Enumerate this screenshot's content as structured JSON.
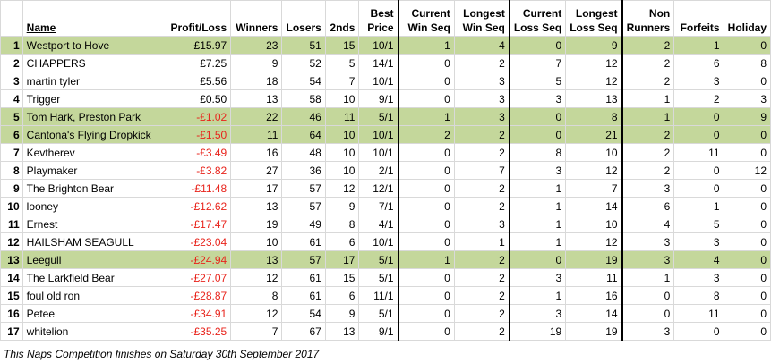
{
  "headers": {
    "name": "Name",
    "profit_loss": "Profit/Loss",
    "winners": "Winners",
    "losers": "Losers",
    "seconds": "2nds",
    "best_price": [
      "Best",
      "Price"
    ],
    "current_win_seq": [
      "Current",
      "Win Seq"
    ],
    "longest_win_seq": [
      "Longest",
      "Win Seq"
    ],
    "current_loss_seq": [
      "Current",
      "Loss Seq"
    ],
    "longest_loss_seq": [
      "Longest",
      "Loss Seq"
    ],
    "non_runners": [
      "Non",
      "Runners"
    ],
    "forfeits": "Forfeits",
    "holiday": "Holiday"
  },
  "colors": {
    "highlight": "#c4d79b",
    "negative": "#e8231b",
    "grid": "#d9d9d9"
  },
  "rows": [
    {
      "rank": "1",
      "name": "Westport to Hove",
      "pl": "£15.97",
      "winners": "23",
      "losers": "51",
      "seconds": "15",
      "best_price": "10/1",
      "cur_win": "1",
      "long_win": "4",
      "cur_loss": "0",
      "long_loss": "9",
      "non_runners": "2",
      "forfeits": "1",
      "holiday": "0",
      "highlight": true,
      "negative": false
    },
    {
      "rank": "2",
      "name": "CHAPPERS",
      "pl": "£7.25",
      "winners": "9",
      "losers": "52",
      "seconds": "5",
      "best_price": "14/1",
      "cur_win": "0",
      "long_win": "2",
      "cur_loss": "7",
      "long_loss": "12",
      "non_runners": "2",
      "forfeits": "6",
      "holiday": "8",
      "highlight": false,
      "negative": false
    },
    {
      "rank": "3",
      "name": "martin tyler",
      "pl": "£5.56",
      "winners": "18",
      "losers": "54",
      "seconds": "7",
      "best_price": "10/1",
      "cur_win": "0",
      "long_win": "3",
      "cur_loss": "5",
      "long_loss": "12",
      "non_runners": "2",
      "forfeits": "3",
      "holiday": "0",
      "highlight": false,
      "negative": false
    },
    {
      "rank": "4",
      "name": "Trigger",
      "pl": "£0.50",
      "winners": "13",
      "losers": "58",
      "seconds": "10",
      "best_price": "9/1",
      "cur_win": "0",
      "long_win": "3",
      "cur_loss": "3",
      "long_loss": "13",
      "non_runners": "1",
      "forfeits": "2",
      "holiday": "3",
      "highlight": false,
      "negative": false
    },
    {
      "rank": "5",
      "name": "Tom Hark, Preston Park",
      "pl": "-£1.02",
      "winners": "22",
      "losers": "46",
      "seconds": "11",
      "best_price": "5/1",
      "cur_win": "1",
      "long_win": "3",
      "cur_loss": "0",
      "long_loss": "8",
      "non_runners": "1",
      "forfeits": "0",
      "holiday": "9",
      "highlight": true,
      "negative": true
    },
    {
      "rank": "6",
      "name": "Cantona's Flying Dropkick",
      "pl": "-£1.50",
      "winners": "11",
      "losers": "64",
      "seconds": "10",
      "best_price": "10/1",
      "cur_win": "2",
      "long_win": "2",
      "cur_loss": "0",
      "long_loss": "21",
      "non_runners": "2",
      "forfeits": "0",
      "holiday": "0",
      "highlight": true,
      "negative": true
    },
    {
      "rank": "7",
      "name": "Kevtherev",
      "pl": "-£3.49",
      "winners": "16",
      "losers": "48",
      "seconds": "10",
      "best_price": "10/1",
      "cur_win": "0",
      "long_win": "2",
      "cur_loss": "8",
      "long_loss": "10",
      "non_runners": "2",
      "forfeits": "11",
      "holiday": "0",
      "highlight": false,
      "negative": true
    },
    {
      "rank": "8",
      "name": "Playmaker",
      "pl": "-£3.82",
      "winners": "27",
      "losers": "36",
      "seconds": "10",
      "best_price": "2/1",
      "cur_win": "0",
      "long_win": "7",
      "cur_loss": "3",
      "long_loss": "12",
      "non_runners": "2",
      "forfeits": "0",
      "holiday": "12",
      "highlight": false,
      "negative": true
    },
    {
      "rank": "9",
      "name": "The Brighton Bear",
      "pl": "-£11.48",
      "winners": "17",
      "losers": "57",
      "seconds": "12",
      "best_price": "12/1",
      "cur_win": "0",
      "long_win": "2",
      "cur_loss": "1",
      "long_loss": "7",
      "non_runners": "3",
      "forfeits": "0",
      "holiday": "0",
      "highlight": false,
      "negative": true
    },
    {
      "rank": "10",
      "name": "looney",
      "pl": "-£12.62",
      "winners": "13",
      "losers": "57",
      "seconds": "9",
      "best_price": "7/1",
      "cur_win": "0",
      "long_win": "2",
      "cur_loss": "1",
      "long_loss": "14",
      "non_runners": "6",
      "forfeits": "1",
      "holiday": "0",
      "highlight": false,
      "negative": true
    },
    {
      "rank": "11",
      "name": "Ernest",
      "pl": "-£17.47",
      "winners": "19",
      "losers": "49",
      "seconds": "8",
      "best_price": "4/1",
      "cur_win": "0",
      "long_win": "3",
      "cur_loss": "1",
      "long_loss": "10",
      "non_runners": "4",
      "forfeits": "5",
      "holiday": "0",
      "highlight": false,
      "negative": true
    },
    {
      "rank": "12",
      "name": "HAILSHAM SEAGULL",
      "pl": "-£23.04",
      "winners": "10",
      "losers": "61",
      "seconds": "6",
      "best_price": "10/1",
      "cur_win": "0",
      "long_win": "1",
      "cur_loss": "1",
      "long_loss": "12",
      "non_runners": "3",
      "forfeits": "3",
      "holiday": "0",
      "highlight": false,
      "negative": true
    },
    {
      "rank": "13",
      "name": "Leegull",
      "pl": "-£24.94",
      "winners": "13",
      "losers": "57",
      "seconds": "17",
      "best_price": "5/1",
      "cur_win": "1",
      "long_win": "2",
      "cur_loss": "0",
      "long_loss": "19",
      "non_runners": "3",
      "forfeits": "4",
      "holiday": "0",
      "highlight": true,
      "negative": true
    },
    {
      "rank": "14",
      "name": "The Larkfield Bear",
      "pl": "-£27.07",
      "winners": "12",
      "losers": "61",
      "seconds": "15",
      "best_price": "5/1",
      "cur_win": "0",
      "long_win": "2",
      "cur_loss": "3",
      "long_loss": "11",
      "non_runners": "1",
      "forfeits": "3",
      "holiday": "0",
      "highlight": false,
      "negative": true
    },
    {
      "rank": "15",
      "name": "foul old ron",
      "pl": "-£28.87",
      "winners": "8",
      "losers": "61",
      "seconds": "6",
      "best_price": "11/1",
      "cur_win": "0",
      "long_win": "2",
      "cur_loss": "1",
      "long_loss": "16",
      "non_runners": "0",
      "forfeits": "8",
      "holiday": "0",
      "highlight": false,
      "negative": true
    },
    {
      "rank": "16",
      "name": "Petee",
      "pl": "-£34.91",
      "winners": "12",
      "losers": "54",
      "seconds": "9",
      "best_price": "5/1",
      "cur_win": "0",
      "long_win": "2",
      "cur_loss": "3",
      "long_loss": "14",
      "non_runners": "0",
      "forfeits": "11",
      "holiday": "0",
      "highlight": false,
      "negative": true
    },
    {
      "rank": "17",
      "name": "whitelion",
      "pl": "-£35.25",
      "winners": "7",
      "losers": "67",
      "seconds": "13",
      "best_price": "9/1",
      "cur_win": "0",
      "long_win": "2",
      "cur_loss": "19",
      "long_loss": "19",
      "non_runners": "3",
      "forfeits": "0",
      "holiday": "0",
      "highlight": false,
      "negative": true
    }
  ],
  "footer": "This Naps Competition finishes on Saturday 30th September 2017"
}
